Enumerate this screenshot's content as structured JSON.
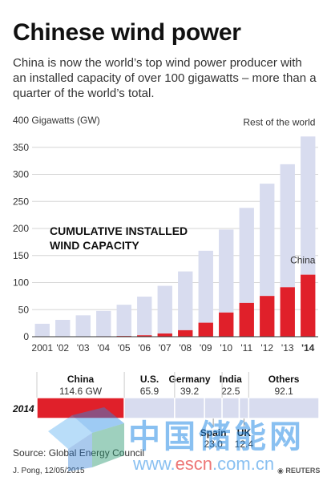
{
  "title": "Chinese wind power",
  "subtitle": "China is now the world’s top wind power producer with an installed capacity of over 100 gigawatts – more than a quarter of the world’s total.",
  "chart_data": [
    {
      "type": "bar",
      "stacked": true,
      "ylabel": "400 Gigawatts (GW)",
      "annotation": "CUMULATIVE INSTALLED WIND CAPACITY",
      "annotation_lines": [
        "CUMULATIVE INSTALLED",
        "WIND CAPACITY"
      ],
      "ylim": [
        0,
        400
      ],
      "yticks": [
        0,
        50,
        100,
        150,
        200,
        250,
        300,
        350
      ],
      "ytick_labels": [
        "0",
        "50",
        "100",
        "150",
        "200",
        "250",
        "300",
        "350"
      ],
      "categories": [
        "2001",
        "'02",
        "'03",
        "'04",
        "'05",
        "'06",
        "'07",
        "'08",
        "'09",
        "'10",
        "'11",
        "'12",
        "'13",
        "'14"
      ],
      "bold_categories": [
        "'14"
      ],
      "series": [
        {
          "name": "China",
          "color": "#e0202a",
          "values": [
            0.4,
            0.5,
            0.6,
            0.8,
            1.3,
            2.6,
            5.9,
            12.0,
            25.8,
            44.7,
            62.4,
            75.3,
            91.4,
            114.6
          ]
        },
        {
          "name": "Rest of the world",
          "color": "#d8dcef",
          "values": [
            23.5,
            30.6,
            38.9,
            46.8,
            57.8,
            71.5,
            88.1,
            108.6,
            133.0,
            153.3,
            175.7,
            207.5,
            227.3,
            255.4
          ]
        }
      ],
      "legend_placement": "inline"
    },
    {
      "type": "bar",
      "orientation": "horizontal",
      "stacked": true,
      "row_label": "2014",
      "segments": [
        {
          "name": "China",
          "value": 114.6,
          "label": "114.6 GW",
          "color": "#e0202a"
        },
        {
          "name": "U.S.",
          "value": 65.9,
          "label": "65.9",
          "color": "#d8dcef"
        },
        {
          "name": "Germany",
          "value": 39.2,
          "label": "39.2",
          "color": "#d8dcef"
        },
        {
          "name": "Spain",
          "value": 23.0,
          "label": "23.0",
          "color": "#d8dcef"
        },
        {
          "name": "India",
          "value": 22.5,
          "label": "22.5",
          "color": "#d8dcef"
        },
        {
          "name": "UK",
          "value": 12.4,
          "label": "12.4",
          "color": "#d8dcef"
        },
        {
          "name": "Others",
          "value": 92.1,
          "label": "92.1",
          "color": "#d8dcef"
        }
      ]
    }
  ],
  "source": "Source: Global Energy Council",
  "credit": "J. Pong, 12/05/2015",
  "reuters_label": "REUTERS",
  "watermark": {
    "cn": "中国储能网",
    "url_pre": "www.",
    "url_mid": "escn",
    "url_post": ".com.cn"
  }
}
